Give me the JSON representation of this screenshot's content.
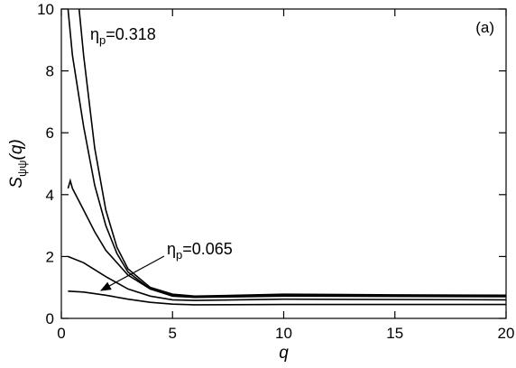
{
  "chart_data": {
    "type": "line",
    "xlabel": "q",
    "ylabel": {
      "main": "S",
      "sub": "ψψ",
      "rest": "(q)"
    },
    "panel_label": "(a)",
    "annotations": [
      {
        "symbol": "η",
        "sub": "p",
        "rest": "=0.318"
      },
      {
        "symbol": "η",
        "sub": "p",
        "rest": "=0.065"
      }
    ],
    "xlim": [
      0,
      20
    ],
    "xticks": [
      0,
      5,
      10,
      15,
      20
    ],
    "ylim": [
      0,
      10
    ],
    "yticks": [
      0,
      2,
      4,
      6,
      8,
      10
    ],
    "series": [
      {
        "color": "#000000",
        "x": [
          0.8,
          1,
          1.5,
          2,
          2.5,
          3,
          4,
          5,
          6,
          8,
          10,
          15,
          20
        ],
        "values": [
          10,
          8.5,
          5.5,
          3.5,
          2.3,
          1.6,
          1.0,
          0.78,
          0.72,
          0.75,
          0.78,
          0.76,
          0.75
        ]
      },
      {
        "color": "#000000",
        "x": [
          0.3,
          0.5,
          1,
          1.5,
          2,
          2.5,
          3,
          4,
          5,
          6,
          10,
          20
        ],
        "values": [
          10,
          8.5,
          6.2,
          4.3,
          3.0,
          2.1,
          1.5,
          0.95,
          0.75,
          0.7,
          0.75,
          0.72
        ]
      },
      {
        "color": "#000000",
        "x": [
          0.3,
          0.4,
          0.5,
          1,
          1.5,
          2,
          3,
          4,
          5,
          6,
          10,
          20
        ],
        "values": [
          4.2,
          4.45,
          4.2,
          3.5,
          2.8,
          2.2,
          1.4,
          0.95,
          0.72,
          0.68,
          0.72,
          0.7
        ]
      },
      {
        "color": "#000000",
        "x": [
          0.3,
          1,
          2,
          3,
          4,
          5,
          6,
          10,
          20
        ],
        "values": [
          2.0,
          1.8,
          1.35,
          0.95,
          0.72,
          0.6,
          0.58,
          0.62,
          0.6
        ]
      },
      {
        "color": "#000000",
        "x": [
          0.3,
          1,
          2,
          3,
          4,
          5,
          6,
          10,
          20
        ],
        "values": [
          0.88,
          0.85,
          0.75,
          0.62,
          0.52,
          0.46,
          0.44,
          0.45,
          0.45
        ]
      }
    ]
  }
}
